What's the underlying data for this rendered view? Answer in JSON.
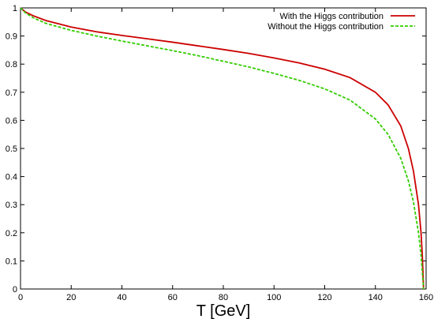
{
  "chart_data": {
    "type": "line",
    "title": "",
    "xlabel": "T [GeV]",
    "ylabel": "",
    "xlim": [
      0,
      160
    ],
    "ylim": [
      0,
      1
    ],
    "xticks": [
      0,
      20,
      40,
      60,
      80,
      100,
      120,
      140,
      160
    ],
    "yticks": [
      0,
      0.1,
      0.2,
      0.3,
      0.4,
      0.5,
      0.6,
      0.7,
      0.8,
      0.9,
      1
    ],
    "grid": false,
    "legend_position": "top-right",
    "series": [
      {
        "name": "With the Higgs contribution",
        "color": "#cc0000",
        "dash": "solid",
        "x": [
          0,
          2,
          5,
          10,
          20,
          30,
          40,
          50,
          60,
          70,
          80,
          90,
          100,
          110,
          120,
          130,
          140,
          145,
          150,
          153,
          155,
          157,
          158,
          158.5,
          159
        ],
        "y": [
          1.0,
          0.985,
          0.972,
          0.955,
          0.932,
          0.915,
          0.902,
          0.89,
          0.878,
          0.865,
          0.852,
          0.838,
          0.822,
          0.804,
          0.782,
          0.752,
          0.7,
          0.655,
          0.58,
          0.5,
          0.42,
          0.3,
          0.2,
          0.12,
          0.0
        ]
      },
      {
        "name": "Without the Higgs contribution",
        "color": "#33cc00",
        "dash": "dashed",
        "x": [
          0,
          2,
          5,
          10,
          20,
          30,
          40,
          50,
          60,
          70,
          80,
          90,
          100,
          110,
          120,
          130,
          140,
          145,
          150,
          153,
          155,
          157,
          158,
          158.5,
          159
        ],
        "y": [
          1.0,
          0.982,
          0.965,
          0.945,
          0.92,
          0.9,
          0.882,
          0.865,
          0.848,
          0.83,
          0.81,
          0.79,
          0.767,
          0.742,
          0.712,
          0.672,
          0.605,
          0.55,
          0.465,
          0.385,
          0.31,
          0.2,
          0.12,
          0.06,
          0.0
        ]
      }
    ]
  }
}
